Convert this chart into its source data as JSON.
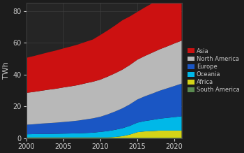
{
  "years": [
    2000,
    2001,
    2002,
    2003,
    2004,
    2005,
    2006,
    2007,
    2008,
    2009,
    2010,
    2011,
    2012,
    2013,
    2014,
    2015,
    2016,
    2017,
    2018,
    2019,
    2020,
    2021
  ],
  "series": {
    "South America": [
      0.3,
      0.3,
      0.3,
      0.3,
      0.3,
      0.3,
      0.3,
      0.3,
      0.3,
      0.3,
      0.3,
      0.3,
      0.3,
      0.3,
      0.3,
      0.3,
      0.3,
      0.3,
      0.3,
      0.3,
      0.3,
      0.3
    ],
    "Africa": [
      0.2,
      0.2,
      0.2,
      0.2,
      0.2,
      0.2,
      0.2,
      0.2,
      0.2,
      0.2,
      0.2,
      0.2,
      0.5,
      1.0,
      2.0,
      3.5,
      4.0,
      4.2,
      4.5,
      4.5,
      4.5,
      4.5
    ],
    "Oceania": [
      2.0,
      2.1,
      2.2,
      2.2,
      2.3,
      2.4,
      2.5,
      2.6,
      2.8,
      3.0,
      3.5,
      4.0,
      4.5,
      5.0,
      5.5,
      6.0,
      6.5,
      7.0,
      7.5,
      8.0,
      8.5,
      9.0
    ],
    "Europe": [
      6.0,
      6.2,
      6.5,
      6.8,
      7.0,
      7.3,
      7.6,
      8.0,
      8.5,
      9.0,
      9.5,
      10.5,
      11.5,
      12.5,
      13.5,
      14.5,
      15.5,
      16.5,
      17.5,
      18.5,
      19.5,
      20.5
    ],
    "North America": [
      20.0,
      20.3,
      20.6,
      21.0,
      21.3,
      21.7,
      22.0,
      22.3,
      22.7,
      23.0,
      23.3,
      23.7,
      24.0,
      24.3,
      24.7,
      25.0,
      25.3,
      25.7,
      26.0,
      26.3,
      26.7,
      27.0
    ],
    "Asia": [
      22.0,
      22.5,
      23.0,
      23.5,
      24.0,
      24.5,
      25.0,
      25.5,
      26.0,
      26.5,
      28.0,
      29.0,
      30.0,
      31.0,
      30.5,
      30.0,
      30.5,
      31.0,
      31.5,
      32.0,
      33.0,
      34.0
    ]
  },
  "colors": {
    "South America": "#5a8a50",
    "Africa": "#d4d418",
    "Oceania": "#00b8e8",
    "Europe": "#1a56c4",
    "North America": "#b8b8b8",
    "Asia": "#cc1111"
  },
  "ylabel": "TWh",
  "ylim": [
    0,
    85
  ],
  "xlim": [
    2000,
    2021
  ],
  "xticks": [
    2000,
    2005,
    2010,
    2015,
    2020
  ],
  "yticks": [
    0,
    20,
    40,
    60,
    80
  ],
  "background_color": "#1c1c1c",
  "axes_color": "#252525",
  "text_color": "#c8c8c8",
  "grid_color": "#404040",
  "legend_order": [
    "Asia",
    "North America",
    "Europe",
    "Oceania",
    "Africa",
    "South America"
  ],
  "stack_order": [
    "South America",
    "Africa",
    "Oceania",
    "Europe",
    "North America",
    "Asia"
  ]
}
